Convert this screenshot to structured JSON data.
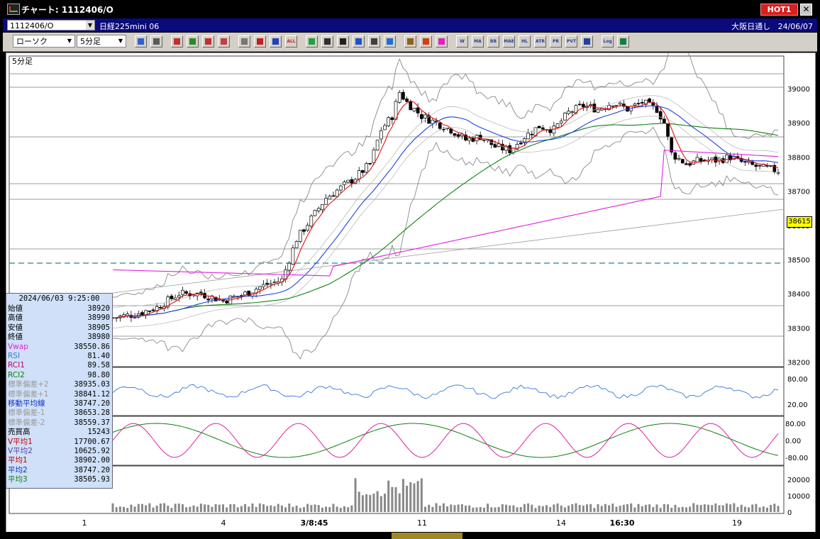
{
  "window": {
    "title": "チャート: 1112406/O",
    "hot_label": "HOT1",
    "close_glyph": "✕"
  },
  "info_row": {
    "symbol": "1112406/O",
    "instrument": "日経225mini 06",
    "session": "大阪日通し",
    "date": "24/06/07"
  },
  "toolbar": {
    "chart_type": "ローソク",
    "interval": "5分足",
    "buttons": [
      "search",
      "grid",
      "buy",
      "zoom",
      "scale",
      "trade",
      "info",
      "candle",
      "candle2",
      "all",
      "pen",
      "line",
      "arrow",
      "rotate",
      "memo",
      "trash",
      "gear",
      "wrench",
      "color",
      "week",
      "ma",
      "bb",
      "mae",
      "hl",
      "atr",
      "vol",
      "pvt",
      "box",
      "log",
      "export"
    ],
    "button_labels": {
      "all": "ALL",
      "week": "W",
      "ma": "MA",
      "bb": "BB",
      "mae": "MAE",
      "hl": "HL",
      "atr": "ATR",
      "vol": "PR",
      "pvt": "PVT",
      "log": "Log"
    }
  },
  "main_chart": {
    "interval_label": "5分足",
    "price_ticks": [
      "39000",
      "38900",
      "38800",
      "38700",
      "38600",
      "38500",
      "38400",
      "38300",
      "38200"
    ],
    "current_price": "38615",
    "colors": {
      "ma1": "#e01010",
      "ma2": "#2040e0",
      "ma3": "#108010",
      "vwap": "#e020e0",
      "bb": "#888888",
      "hline": "#7a7a7a",
      "dash": "#208888"
    }
  },
  "rsi_panel": {
    "ticks": [
      "80.00",
      "20.00"
    ],
    "color": "#3a78d8"
  },
  "rci_panel": {
    "ticks": [
      "80.00",
      "0.00",
      "-80.00"
    ],
    "rci1_color": "#e020a0",
    "rci2_color": "#108010"
  },
  "volume_panel": {
    "ticks": [
      "20000",
      "10000",
      "0"
    ]
  },
  "x_axis": {
    "labels": [
      "1",
      "4",
      "3/8:45",
      "11",
      "14",
      "16:30",
      "19"
    ]
  },
  "info_panel": {
    "datetime": "2024/06/03 9:25:00",
    "rows": [
      {
        "k": "始値",
        "v": "38920",
        "c": "#000"
      },
      {
        "k": "高値",
        "v": "38990",
        "c": "#000"
      },
      {
        "k": "安値",
        "v": "38905",
        "c": "#000"
      },
      {
        "k": "終値",
        "v": "38980",
        "c": "#000"
      },
      {
        "k": "Vwap",
        "v": "38550.86",
        "c": "#e020e0"
      },
      {
        "k": "RSI",
        "v": "81.40",
        "c": "#3a78d8"
      },
      {
        "k": "RCI1",
        "v": "89.58",
        "c": "#c00060"
      },
      {
        "k": "RCI2",
        "v": "98.80",
        "c": "#108010"
      },
      {
        "k": "標準偏差+2",
        "v": "38935.03",
        "c": "#999"
      },
      {
        "k": "標準偏差+1",
        "v": "38841.12",
        "c": "#999"
      },
      {
        "k": "移動平均線",
        "v": "38747.20",
        "c": "#1030c0"
      },
      {
        "k": "標準偏差-1",
        "v": "38653.28",
        "c": "#999"
      },
      {
        "k": "標準偏差-2",
        "v": "38559.37",
        "c": "#999"
      },
      {
        "k": "売買高",
        "v": "15243",
        "c": "#000"
      },
      {
        "k": "V平均1",
        "v": "17700.67",
        "c": "#c00000"
      },
      {
        "k": "V平均2",
        "v": "10625.92",
        "c": "#6040a0"
      },
      {
        "k": "平均1",
        "v": "38902.00",
        "c": "#c00000"
      },
      {
        "k": "平均2",
        "v": "38747.20",
        "c": "#1030c0"
      },
      {
        "k": "平均3",
        "v": "38505.93",
        "c": "#108010"
      }
    ]
  }
}
